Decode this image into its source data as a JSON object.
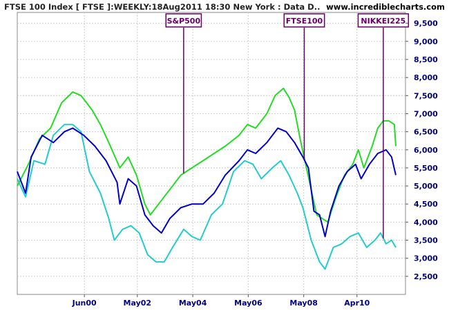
{
  "header": {
    "title": "FTSE 100 Index [ FTSE ]:WEEKLY:18Aug2011 18:30 New York : Data D..",
    "site": "www.incrediblecharts.com"
  },
  "chart_data": {
    "type": "line",
    "title": "FTSE 100 Index [ FTSE ]:WEEKLY:18Aug2011 18:30 New York : Data D..",
    "x_tick_labels": [
      {
        "label": "Jun00",
        "year": 2000.42
      },
      {
        "label": "May02",
        "year": 2002.33
      },
      {
        "label": "May04",
        "year": 2004.33
      },
      {
        "label": "May06",
        "year": 2006.33
      },
      {
        "label": "May08",
        "year": 2008.33
      },
      {
        "label": "Apr10",
        "year": 2010.25
      }
    ],
    "xlim": [
      1998.0,
      2012.0
    ],
    "ylim": [
      2000,
      9800
    ],
    "y_ticks": [
      2500,
      3000,
      3500,
      4000,
      4500,
      5000,
      5500,
      6000,
      6500,
      7000,
      7500,
      8000,
      8500,
      9000,
      9500
    ],
    "y_tick_labels": [
      "2,500",
      "3,000",
      "3,500",
      "4,000",
      "4,500",
      "5,000",
      "5,500",
      "6,000",
      "6,500",
      "7,000",
      "7,500",
      "8,000",
      "8,500",
      "9,000",
      "9,500"
    ],
    "grid": true,
    "legend": "labels attached to each series near top",
    "series": [
      {
        "name": "S&P500",
        "color": "#22dd22",
        "points": [
          [
            1998.0,
            5000
          ],
          [
            1998.4,
            5600
          ],
          [
            1998.8,
            6300
          ],
          [
            1999.2,
            6600
          ],
          [
            1999.6,
            7300
          ],
          [
            2000.0,
            7600
          ],
          [
            2000.3,
            7500
          ],
          [
            2000.7,
            7100
          ],
          [
            2001.0,
            6700
          ],
          [
            2001.3,
            6200
          ],
          [
            2001.7,
            5500
          ],
          [
            2002.0,
            5800
          ],
          [
            2002.3,
            5300
          ],
          [
            2002.6,
            4500
          ],
          [
            2002.8,
            4200
          ],
          [
            2003.1,
            4500
          ],
          [
            2003.5,
            4900
          ],
          [
            2003.9,
            5300
          ],
          [
            2004.3,
            5500
          ],
          [
            2004.7,
            5700
          ],
          [
            2005.1,
            5900
          ],
          [
            2005.5,
            6100
          ],
          [
            2006.0,
            6400
          ],
          [
            2006.3,
            6700
          ],
          [
            2006.6,
            6600
          ],
          [
            2007.0,
            7000
          ],
          [
            2007.3,
            7500
          ],
          [
            2007.6,
            7700
          ],
          [
            2007.8,
            7450
          ],
          [
            2008.0,
            7100
          ],
          [
            2008.2,
            6300
          ],
          [
            2008.4,
            5600
          ],
          [
            2008.6,
            4900
          ],
          [
            2008.8,
            4200
          ],
          [
            2009.0,
            4100
          ],
          [
            2009.2,
            4000
          ],
          [
            2009.5,
            4700
          ],
          [
            2009.8,
            5300
          ],
          [
            2010.1,
            5600
          ],
          [
            2010.3,
            6000
          ],
          [
            2010.5,
            5500
          ],
          [
            2010.8,
            6100
          ],
          [
            2011.0,
            6600
          ],
          [
            2011.2,
            6800
          ],
          [
            2011.4,
            6800
          ],
          [
            2011.6,
            6700
          ],
          [
            2011.65,
            6100
          ]
        ]
      },
      {
        "name": "FTSE100",
        "color": "#0000cc",
        "points": [
          [
            1998.0,
            5400
          ],
          [
            1998.3,
            4800
          ],
          [
            1998.5,
            5800
          ],
          [
            1998.9,
            6400
          ],
          [
            1999.3,
            6200
          ],
          [
            1999.7,
            6500
          ],
          [
            2000.0,
            6600
          ],
          [
            2000.4,
            6400
          ],
          [
            2000.8,
            6100
          ],
          [
            2001.2,
            5700
          ],
          [
            2001.6,
            5100
          ],
          [
            2001.7,
            4500
          ],
          [
            2002.0,
            5200
          ],
          [
            2002.3,
            5000
          ],
          [
            2002.6,
            4200
          ],
          [
            2002.9,
            3900
          ],
          [
            2003.2,
            3700
          ],
          [
            2003.5,
            4100
          ],
          [
            2003.9,
            4400
          ],
          [
            2004.3,
            4500
          ],
          [
            2004.7,
            4500
          ],
          [
            2005.1,
            4800
          ],
          [
            2005.5,
            5300
          ],
          [
            2006.0,
            5700
          ],
          [
            2006.3,
            6000
          ],
          [
            2006.6,
            5900
          ],
          [
            2007.0,
            6200
          ],
          [
            2007.4,
            6600
          ],
          [
            2007.7,
            6500
          ],
          [
            2008.0,
            6200
          ],
          [
            2008.3,
            5800
          ],
          [
            2008.5,
            5500
          ],
          [
            2008.7,
            4300
          ],
          [
            2008.9,
            4200
          ],
          [
            2009.1,
            3600
          ],
          [
            2009.3,
            4300
          ],
          [
            2009.6,
            5000
          ],
          [
            2009.9,
            5400
          ],
          [
            2010.2,
            5600
          ],
          [
            2010.4,
            5200
          ],
          [
            2010.7,
            5600
          ],
          [
            2011.0,
            5900
          ],
          [
            2011.3,
            6000
          ],
          [
            2011.5,
            5800
          ],
          [
            2011.65,
            5300
          ]
        ]
      },
      {
        "name": "NIKKEI225",
        "color": "#22cccc",
        "points": [
          [
            1998.0,
            5200
          ],
          [
            1998.3,
            4700
          ],
          [
            1998.6,
            5700
          ],
          [
            1999.0,
            5600
          ],
          [
            1999.3,
            6400
          ],
          [
            1999.7,
            6700
          ],
          [
            2000.0,
            6700
          ],
          [
            2000.3,
            6500
          ],
          [
            2000.6,
            5400
          ],
          [
            2001.0,
            4800
          ],
          [
            2001.3,
            4100
          ],
          [
            2001.5,
            3500
          ],
          [
            2001.8,
            3800
          ],
          [
            2002.1,
            3900
          ],
          [
            2002.4,
            3700
          ],
          [
            2002.7,
            3100
          ],
          [
            2003.0,
            2900
          ],
          [
            2003.3,
            2900
          ],
          [
            2003.6,
            3300
          ],
          [
            2004.0,
            3800
          ],
          [
            2004.3,
            3600
          ],
          [
            2004.6,
            3500
          ],
          [
            2005.0,
            4200
          ],
          [
            2005.4,
            4500
          ],
          [
            2005.8,
            5400
          ],
          [
            2006.2,
            5700
          ],
          [
            2006.5,
            5600
          ],
          [
            2006.8,
            5200
          ],
          [
            2007.2,
            5500
          ],
          [
            2007.5,
            5700
          ],
          [
            2007.8,
            5300
          ],
          [
            2008.1,
            4800
          ],
          [
            2008.3,
            4400
          ],
          [
            2008.6,
            3500
          ],
          [
            2008.9,
            2900
          ],
          [
            2009.1,
            2700
          ],
          [
            2009.4,
            3300
          ],
          [
            2009.7,
            3400
          ],
          [
            2010.0,
            3600
          ],
          [
            2010.3,
            3700
          ],
          [
            2010.6,
            3300
          ],
          [
            2010.9,
            3500
          ],
          [
            2011.1,
            3700
          ],
          [
            2011.3,
            3400
          ],
          [
            2011.5,
            3500
          ],
          [
            2011.65,
            3300
          ]
        ]
      }
    ],
    "annotations": [
      {
        "label": "S&P500",
        "year": 2004.0,
        "color": "#660066"
      },
      {
        "label": "FTSE100",
        "year": 2008.35,
        "color": "#660066"
      },
      {
        "label": "NIKKEI225",
        "year": 2011.2,
        "color": "#660066"
      }
    ]
  }
}
